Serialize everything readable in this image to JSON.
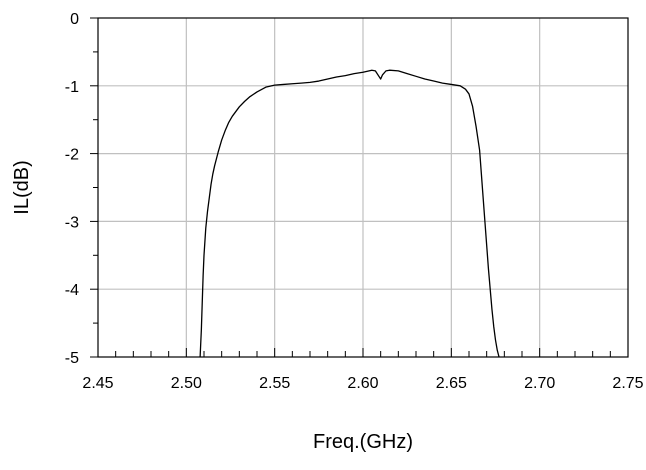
{
  "chart_data": {
    "type": "line",
    "title": "",
    "xlabel": "Freq.(GHz)",
    "ylabel": "IL(dB)",
    "xlim": [
      2.45,
      2.75
    ],
    "ylim": [
      -5,
      0
    ],
    "grid": true,
    "x_ticks": [
      2.45,
      2.5,
      2.55,
      2.6,
      2.65,
      2.7,
      2.75
    ],
    "x_tick_labels": [
      "2.45",
      "2.50",
      "2.55",
      "2.60",
      "2.65",
      "2.70",
      "2.75"
    ],
    "y_ticks": [
      0,
      -1,
      -2,
      -3,
      -4,
      -5
    ],
    "y_tick_labels": [
      "0",
      "-1",
      "-2",
      "-3",
      "-4",
      "-5"
    ],
    "colors": {
      "line": "#000000",
      "grid": "#c0c0c0"
    },
    "series": [
      {
        "x": [
          2.5078,
          2.5085,
          2.509,
          2.5095,
          2.51,
          2.511,
          2.512,
          2.513,
          2.514,
          2.515,
          2.516,
          2.518,
          2.52,
          2.522,
          2.524,
          2.526,
          2.528,
          2.53,
          2.533,
          2.536,
          2.54,
          2.545,
          2.55,
          2.555,
          2.56,
          2.565,
          2.57,
          2.575,
          2.58,
          2.585,
          2.59,
          2.595,
          2.6,
          2.605,
          2.607,
          2.609,
          2.61,
          2.611,
          2.613,
          2.615,
          2.62,
          2.625,
          2.63,
          2.635,
          2.64,
          2.645,
          2.65,
          2.655,
          2.658,
          2.66,
          2.662,
          2.664,
          2.666,
          2.667,
          2.668,
          2.669,
          2.67,
          2.671,
          2.672,
          2.673,
          2.674,
          2.675,
          2.676,
          2.677
        ],
        "y": [
          -5.0,
          -4.6,
          -4.2,
          -3.8,
          -3.5,
          -3.1,
          -2.85,
          -2.65,
          -2.45,
          -2.3,
          -2.18,
          -1.98,
          -1.8,
          -1.66,
          -1.54,
          -1.45,
          -1.38,
          -1.31,
          -1.23,
          -1.16,
          -1.09,
          -1.02,
          -0.99,
          -0.98,
          -0.97,
          -0.96,
          -0.95,
          -0.93,
          -0.9,
          -0.87,
          -0.85,
          -0.82,
          -0.8,
          -0.77,
          -0.78,
          -0.86,
          -0.9,
          -0.84,
          -0.78,
          -0.77,
          -0.78,
          -0.82,
          -0.86,
          -0.9,
          -0.93,
          -0.96,
          -0.98,
          -1.0,
          -1.05,
          -1.12,
          -1.3,
          -1.6,
          -1.95,
          -2.3,
          -2.65,
          -3.0,
          -3.35,
          -3.7,
          -4.0,
          -4.3,
          -4.55,
          -4.75,
          -4.9,
          -5.0
        ]
      }
    ]
  }
}
